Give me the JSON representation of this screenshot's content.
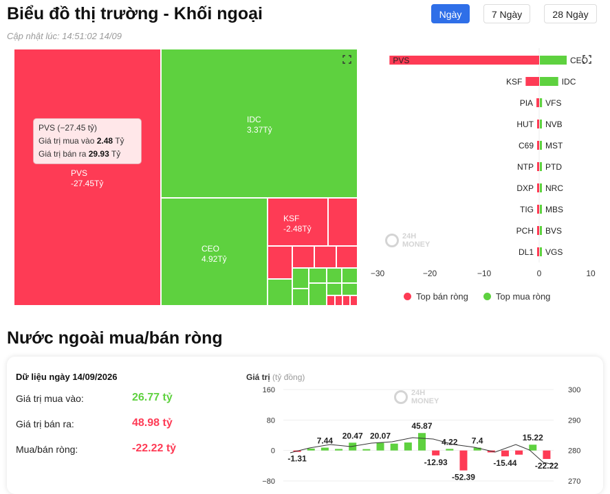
{
  "header": {
    "title": "Biểu đồ thị trường - Khối ngoại",
    "updated": "Cập nhật lúc: 14:51:02 14/09",
    "tabs": [
      {
        "label": "Ngày",
        "active": true
      },
      {
        "label": "7 Ngày",
        "active": false
      },
      {
        "label": "28 Ngày",
        "active": false
      }
    ]
  },
  "treemap": {
    "colors": {
      "sell": "#fe3b55",
      "buy": "#5ed13f"
    },
    "cells": [
      {
        "code": "PVS",
        "value": "-27.45Tỷ",
        "side": "sell"
      },
      {
        "code": "IDC",
        "value": "3.37Tỷ",
        "side": "buy"
      },
      {
        "code": "CEO",
        "value": "4.92Tỷ",
        "side": "buy"
      },
      {
        "code": "KSF",
        "value": "-2.48Tỷ",
        "side": "sell"
      }
    ],
    "tooltip": {
      "head": "PVS (−27.45 tỷ)",
      "buy_label": "Giá trị mua vào",
      "buy_value": "2.48",
      "buy_unit": "Tỷ",
      "sell_label": "Giá trị bán ra",
      "sell_value": "29.93",
      "sell_unit": "Tỷ"
    }
  },
  "watermark": {
    "line1": "24H",
    "line2": "MONEY"
  },
  "top_chart": {
    "sell_codes": [
      "PVS",
      "KSF",
      "PIA",
      "HUT",
      "C69",
      "NTP",
      "DXP",
      "TIG",
      "PCH",
      "DL1"
    ],
    "sell_values": [
      -27.45,
      -2.48,
      -0.5,
      -0.35,
      -0.15,
      -0.1,
      -0.08,
      -0.06,
      -0.05,
      -0.04
    ],
    "buy_codes": [
      "CEO",
      "IDC",
      "VFS",
      "NVB",
      "MST",
      "PTD",
      "NRC",
      "MBS",
      "BVS",
      "VGS"
    ],
    "buy_values": [
      4.92,
      3.37,
      0.4,
      0.3,
      0.2,
      0.15,
      0.12,
      0.1,
      0.08,
      0.05
    ],
    "axis_ticks": [
      "−30",
      "−20",
      "−10",
      "0",
      "10"
    ],
    "legend_sell": "Top bán ròng",
    "legend_buy": "Top mua ròng"
  },
  "section": {
    "title": "Nước ngoài mua/bán ròng",
    "date_label": "Dữ liệu ngày 14/09/2026",
    "rows": [
      {
        "label": "Giá trị mua vào:",
        "value": "26.77 tỷ",
        "color": "#5ed13f"
      },
      {
        "label": "Giá trị bán ra:",
        "value": "48.98 tỷ",
        "color": "#fe3b55"
      },
      {
        "label": "Mua/bán ròng:",
        "value": "-22.22 tỷ",
        "color": "#fe3b55"
      }
    ]
  },
  "chart_data": {
    "type": "bar",
    "ylabel": "Giá trị",
    "ylabel_unit": "(tỷ đồng)",
    "y_ticks": [
      "160",
      "80",
      "0",
      "−80"
    ],
    "y2_ticks": [
      "300",
      "290",
      "280",
      "270"
    ],
    "values": [
      -1.31,
      5,
      7.44,
      4,
      20.47,
      1.5,
      20.07,
      18,
      21,
      45.87,
      -12.93,
      4.22,
      -52.39,
      7.4,
      -5,
      -15.44,
      -11,
      15.22,
      -22.22
    ],
    "labels": [
      "-1.31",
      "",
      "7.44",
      "",
      "20.47",
      "",
      "20.07",
      "",
      "",
      "45.87",
      "-12.93",
      "4.22",
      "-52.39",
      "7.4",
      "",
      "-15.44",
      "",
      "15.22",
      "-22.22"
    ],
    "ylim": [
      -80,
      160
    ],
    "colors": {
      "positive": "#5ed13f",
      "negative": "#fe3b55"
    }
  }
}
